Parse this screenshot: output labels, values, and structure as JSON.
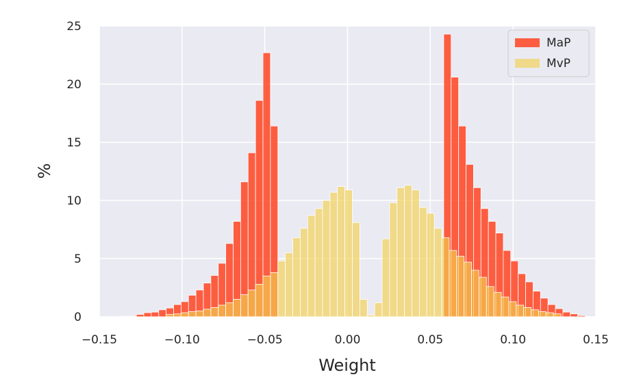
{
  "chart_data": {
    "type": "bar",
    "xlabel": "Weight",
    "ylabel": "%",
    "xlim": [
      -0.15,
      0.15
    ],
    "ylim": [
      0,
      25
    ],
    "xticks": [
      "−0.15",
      "−0.10",
      "−0.05",
      "0.00",
      "0.05",
      "0.10",
      "0.15"
    ],
    "yticks": [
      "0",
      "5",
      "10",
      "15",
      "20",
      "25"
    ],
    "grid": true,
    "legend_position": "top-right",
    "bin_width": 0.0045,
    "series": [
      {
        "name": "MaP",
        "color": "#ff4422",
        "bins": [
          [
            -0.1366,
            0.05
          ],
          [
            -0.1321,
            0.05
          ],
          [
            -0.1276,
            0.2
          ],
          [
            -0.1231,
            0.35
          ],
          [
            -0.1186,
            0.4
          ],
          [
            -0.1141,
            0.6
          ],
          [
            -0.1096,
            0.75
          ],
          [
            -0.1051,
            1.05
          ],
          [
            -0.1006,
            1.3
          ],
          [
            -0.0961,
            1.85
          ],
          [
            -0.0916,
            2.3
          ],
          [
            -0.0871,
            2.9
          ],
          [
            -0.0826,
            3.55
          ],
          [
            -0.0781,
            4.6
          ],
          [
            -0.0736,
            6.3
          ],
          [
            -0.0691,
            8.2
          ],
          [
            -0.0646,
            11.6
          ],
          [
            -0.0601,
            14.1
          ],
          [
            -0.0556,
            18.6
          ],
          [
            -0.0511,
            22.7
          ],
          [
            -0.0466,
            16.4
          ],
          [
            0.0581,
            24.3
          ],
          [
            0.0626,
            20.6
          ],
          [
            0.0671,
            16.4
          ],
          [
            0.0716,
            13.1
          ],
          [
            0.0761,
            11.1
          ],
          [
            0.0806,
            9.3
          ],
          [
            0.0851,
            8.2
          ],
          [
            0.0896,
            7.2
          ],
          [
            0.0941,
            5.7
          ],
          [
            0.0986,
            4.8
          ],
          [
            0.1031,
            3.7
          ],
          [
            0.1076,
            3.0
          ],
          [
            0.1121,
            2.2
          ],
          [
            0.1166,
            1.6
          ],
          [
            0.1211,
            1.05
          ],
          [
            0.1256,
            0.7
          ],
          [
            0.1301,
            0.4
          ],
          [
            0.1346,
            0.25
          ],
          [
            0.1391,
            0.1
          ]
        ]
      },
      {
        "name": "MvP",
        "color": "#f2d04f",
        "bins": [
          [
            -0.1096,
            0.2
          ],
          [
            -0.1051,
            0.25
          ],
          [
            -0.1006,
            0.35
          ],
          [
            -0.0961,
            0.45
          ],
          [
            -0.0916,
            0.5
          ],
          [
            -0.0871,
            0.65
          ],
          [
            -0.0826,
            0.8
          ],
          [
            -0.0781,
            1.0
          ],
          [
            -0.0736,
            1.2
          ],
          [
            -0.0691,
            1.5
          ],
          [
            -0.0646,
            1.9
          ],
          [
            -0.0601,
            2.3
          ],
          [
            -0.0556,
            2.8
          ],
          [
            -0.0511,
            3.5
          ],
          [
            -0.0466,
            3.8
          ],
          [
            -0.0421,
            4.8
          ],
          [
            -0.0376,
            5.5
          ],
          [
            -0.0331,
            6.8
          ],
          [
            -0.0286,
            7.6
          ],
          [
            -0.0241,
            8.7
          ],
          [
            -0.0196,
            9.3
          ],
          [
            -0.0151,
            10.0
          ],
          [
            -0.0106,
            10.7
          ],
          [
            -0.0061,
            11.2
          ],
          [
            -0.0016,
            10.9
          ],
          [
            0.0029,
            8.1
          ],
          [
            0.0074,
            1.5
          ],
          [
            0.0119,
            0.15
          ],
          [
            0.0164,
            1.2
          ],
          [
            0.0209,
            6.7
          ],
          [
            0.0254,
            9.8
          ],
          [
            0.0299,
            11.1
          ],
          [
            0.0344,
            11.3
          ],
          [
            0.0389,
            10.9
          ],
          [
            0.0434,
            9.4
          ],
          [
            0.0479,
            8.9
          ],
          [
            0.0524,
            7.6
          ],
          [
            0.0569,
            6.8
          ],
          [
            0.0614,
            5.7
          ],
          [
            0.0659,
            5.2
          ],
          [
            0.0704,
            4.7
          ],
          [
            0.0749,
            4.0
          ],
          [
            0.0794,
            3.4
          ],
          [
            0.0839,
            2.6
          ],
          [
            0.0884,
            2.1
          ],
          [
            0.0929,
            1.7
          ],
          [
            0.0974,
            1.3
          ],
          [
            0.1019,
            1.0
          ],
          [
            0.1064,
            0.8
          ],
          [
            0.1109,
            0.6
          ],
          [
            0.1154,
            0.45
          ],
          [
            0.1199,
            0.35
          ],
          [
            0.1244,
            0.25
          ]
        ]
      }
    ]
  }
}
